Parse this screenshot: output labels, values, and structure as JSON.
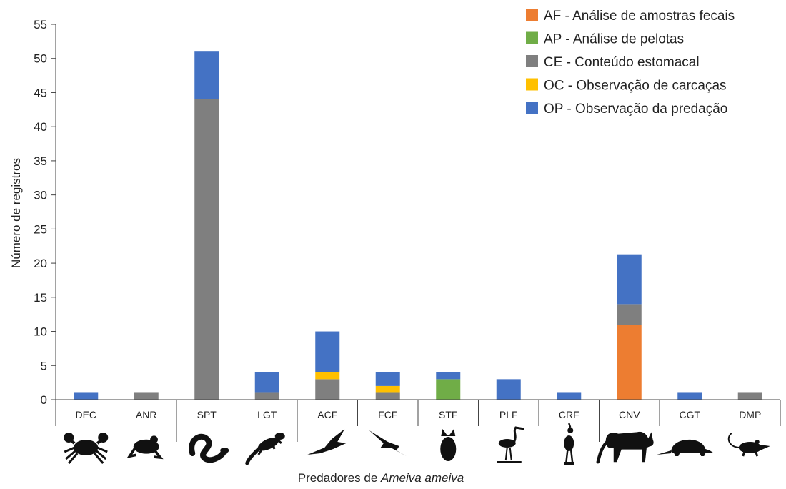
{
  "chart_data": {
    "type": "bar",
    "stacked": true,
    "categories": [
      "DEC",
      "ANR",
      "SPT",
      "LGT",
      "ACF",
      "FCF",
      "STF",
      "PLF",
      "CRF",
      "CNV",
      "CGT",
      "DMP"
    ],
    "series": [
      {
        "name": "AF - Análise de amostras fecais",
        "color": "#ED7D31",
        "values": [
          0,
          0,
          0,
          0,
          0,
          0,
          0,
          0,
          0,
          11,
          0,
          0
        ]
      },
      {
        "name": "AP - Análise de pelotas",
        "color": "#70AD47",
        "values": [
          0,
          0,
          0,
          0,
          0,
          0,
          3,
          0,
          0,
          0,
          0,
          0
        ]
      },
      {
        "name": "CE - Conteúdo estomacal",
        "color": "#7F7F7F",
        "values": [
          0,
          1,
          44,
          1,
          3,
          1,
          0,
          0,
          0,
          3,
          0,
          1
        ]
      },
      {
        "name": "OC - Observação de carcaças",
        "color": "#FFC000",
        "values": [
          0,
          0,
          0,
          0,
          1,
          1,
          0,
          0,
          0,
          0,
          0,
          0
        ]
      },
      {
        "name": "OP - Observação da predação",
        "color": "#4472C4",
        "values": [
          1,
          0,
          7,
          3,
          6,
          2,
          1,
          3,
          1,
          7.3,
          1,
          0
        ]
      }
    ],
    "yticks": [
      0,
      5,
      10,
      15,
      20,
      25,
      30,
      35,
      40,
      45,
      50,
      55
    ],
    "ylim": [
      0,
      55
    ],
    "ylabel": "Número de registros",
    "xlabel_prefix": "Predadores de ",
    "xlabel_italic": "Ameiva ameiva",
    "group_separators_after": [
      "ANR",
      "LGT",
      "CRF"
    ],
    "legend_position": "top-right",
    "grid": false,
    "icons": [
      "crab-icon",
      "frog-icon",
      "snake-icon",
      "lizard-icon",
      "hawk-icon",
      "falcon-icon",
      "owl-icon",
      "heron-icon",
      "seriema-icon",
      "cat-icon",
      "armadillo-icon",
      "opossum-icon"
    ]
  }
}
